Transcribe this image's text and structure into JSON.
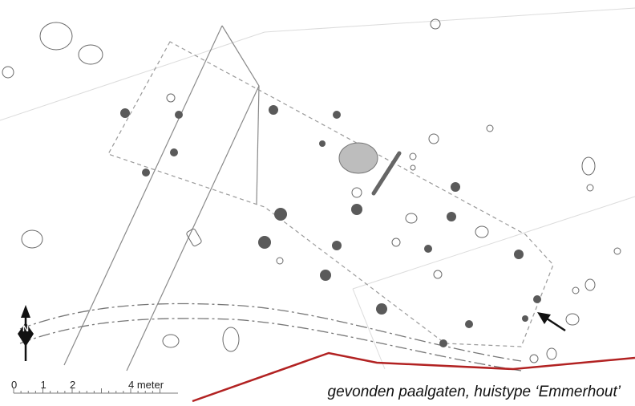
{
  "caption": "gevonden paalgaten, huistype ‘Emmerhout’",
  "scale_bar": {
    "ticks": [
      {
        "label": "0",
        "value": 0
      },
      {
        "label": "1",
        "value": 1
      },
      {
        "label": "2",
        "value": 2
      },
      {
        "label": "4 meter",
        "value": 4
      }
    ]
  },
  "north_arrow": {
    "label": "N"
  },
  "legend_colors": {
    "postholes": "#5a5a5a",
    "pit": "#bdbdbd",
    "excavation_edge": "#b22222",
    "other_features": "#555555"
  }
}
